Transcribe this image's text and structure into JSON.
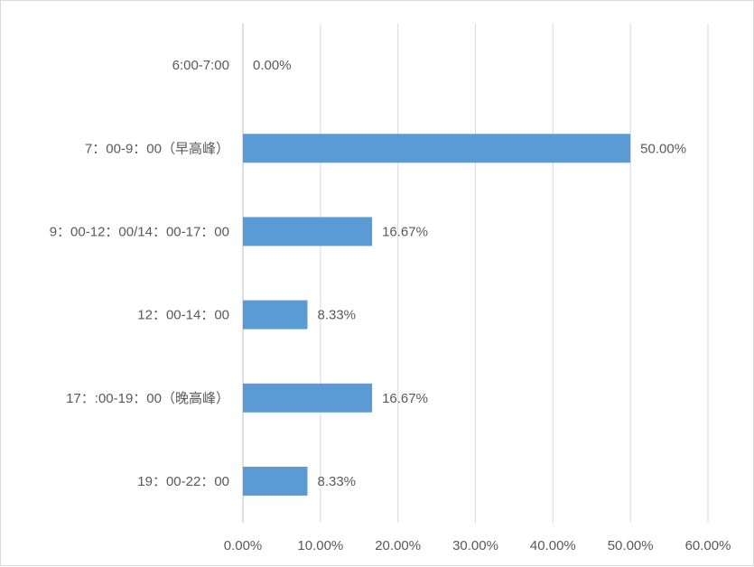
{
  "chart_data": {
    "type": "bar",
    "orientation": "horizontal",
    "title": "",
    "xlabel": "",
    "ylabel": "",
    "categories": [
      "6:00-7:00",
      "7：00-9：00（早高峰）",
      "9：00-12：00/14：00-17：00",
      "12：00-14：00",
      "17：:00-19：00（晚高峰）",
      "19：00-22：00"
    ],
    "values": [
      0.0,
      50.0,
      16.67,
      8.33,
      16.67,
      8.33
    ],
    "data_labels": [
      "0.00%",
      "50.00%",
      "16.67%",
      "8.33%",
      "16.67%",
      "8.33%"
    ],
    "xlim": [
      0,
      60
    ],
    "x_ticks": [
      "0.00%",
      "10.00%",
      "20.00%",
      "30.00%",
      "40.00%",
      "50.00%",
      "60.00%"
    ],
    "grid": true,
    "legend": "none",
    "bar_color": "#5b9bd5"
  }
}
